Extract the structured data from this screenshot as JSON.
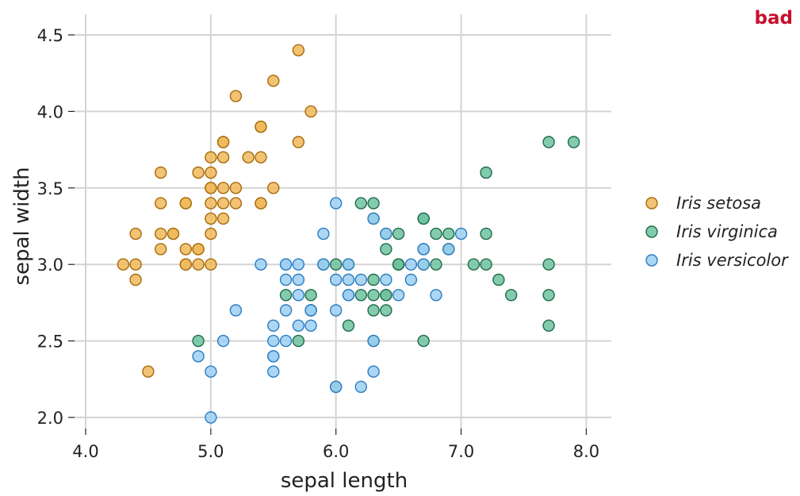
{
  "tag": {
    "text": "bad",
    "color": "#c8102e"
  },
  "chart_data": {
    "type": "scatter",
    "xlabel": "sepal length",
    "ylabel": "sepal width",
    "xlim": [
      4.0,
      8.2
    ],
    "ylim": [
      2.0,
      4.5
    ],
    "xticks": [
      4.0,
      5.0,
      6.0,
      7.0,
      8.0
    ],
    "xtick_labels": [
      "4.0",
      "5.0",
      "6.0",
      "7.0",
      "8.0"
    ],
    "yticks": [
      2.0,
      2.5,
      3.0,
      3.5,
      4.0,
      4.5
    ],
    "ytick_labels": [
      "2.0",
      "2.5",
      "3.0",
      "3.5",
      "4.0",
      "4.5"
    ],
    "grid": true,
    "legend_position": "right",
    "series": [
      {
        "name": "Iris setosa",
        "fill": "#f0b85a",
        "stroke": "#a66a0a",
        "points": [
          [
            5.7,
            4.4
          ],
          [
            5.5,
            4.2
          ],
          [
            5.2,
            4.1
          ],
          [
            5.8,
            4.0
          ],
          [
            5.4,
            3.9
          ],
          [
            5.4,
            3.9
          ],
          [
            5.1,
            3.8
          ],
          [
            5.1,
            3.8
          ],
          [
            5.7,
            3.8
          ],
          [
            5.1,
            3.7
          ],
          [
            5.3,
            3.7
          ],
          [
            5.4,
            3.7
          ],
          [
            5.0,
            3.7
          ],
          [
            4.6,
            3.6
          ],
          [
            4.9,
            3.6
          ],
          [
            5.0,
            3.6
          ],
          [
            5.0,
            3.5
          ],
          [
            5.0,
            3.5
          ],
          [
            5.1,
            3.5
          ],
          [
            5.2,
            3.5
          ],
          [
            5.5,
            3.5
          ],
          [
            4.6,
            3.4
          ],
          [
            5.0,
            3.4
          ],
          [
            5.1,
            3.4
          ],
          [
            5.2,
            3.4
          ],
          [
            5.4,
            3.4
          ],
          [
            5.4,
            3.4
          ],
          [
            4.8,
            3.4
          ],
          [
            4.8,
            3.4
          ],
          [
            5.0,
            3.3
          ],
          [
            5.1,
            3.3
          ],
          [
            4.4,
            3.2
          ],
          [
            4.6,
            3.2
          ],
          [
            4.7,
            3.2
          ],
          [
            4.7,
            3.2
          ],
          [
            5.0,
            3.2
          ],
          [
            4.6,
            3.1
          ],
          [
            4.9,
            3.1
          ],
          [
            4.9,
            3.1
          ],
          [
            4.8,
            3.1
          ],
          [
            4.3,
            3.0
          ],
          [
            4.4,
            3.0
          ],
          [
            4.8,
            3.0
          ],
          [
            4.9,
            3.0
          ],
          [
            5.0,
            3.0
          ],
          [
            4.8,
            3.0
          ],
          [
            4.4,
            2.9
          ],
          [
            4.5,
            2.3
          ]
        ]
      },
      {
        "name": "Iris virginica",
        "fill": "#6ec2a0",
        "stroke": "#1d6b4a",
        "points": [
          [
            7.9,
            3.8
          ],
          [
            7.7,
            3.8
          ],
          [
            7.2,
            3.6
          ],
          [
            6.3,
            3.4
          ],
          [
            6.2,
            3.4
          ],
          [
            6.7,
            3.3
          ],
          [
            6.3,
            3.3
          ],
          [
            6.7,
            3.3
          ],
          [
            6.9,
            3.2
          ],
          [
            6.5,
            3.2
          ],
          [
            7.2,
            3.2
          ],
          [
            6.4,
            3.2
          ],
          [
            6.8,
            3.2
          ],
          [
            6.9,
            3.1
          ],
          [
            6.7,
            3.1
          ],
          [
            6.4,
            3.1
          ],
          [
            6.9,
            3.1
          ],
          [
            7.2,
            3.0
          ],
          [
            7.7,
            3.0
          ],
          [
            7.1,
            3.0
          ],
          [
            6.5,
            3.0
          ],
          [
            6.8,
            3.0
          ],
          [
            6.1,
            3.0
          ],
          [
            5.9,
            3.0
          ],
          [
            6.0,
            3.0
          ],
          [
            6.5,
            3.0
          ],
          [
            6.7,
            3.0
          ],
          [
            6.5,
            3.0
          ],
          [
            6.3,
            2.9
          ],
          [
            7.3,
            2.9
          ],
          [
            6.2,
            2.8
          ],
          [
            6.4,
            2.8
          ],
          [
            6.4,
            2.8
          ],
          [
            7.7,
            2.8
          ],
          [
            6.3,
            2.8
          ],
          [
            7.4,
            2.8
          ],
          [
            5.8,
            2.8
          ],
          [
            5.6,
            2.8
          ],
          [
            6.3,
            2.7
          ],
          [
            6.4,
            2.7
          ],
          [
            5.8,
            2.7
          ],
          [
            5.8,
            2.7
          ],
          [
            7.7,
            2.6
          ],
          [
            6.1,
            2.6
          ],
          [
            5.7,
            2.5
          ],
          [
            6.3,
            2.5
          ],
          [
            4.9,
            2.5
          ],
          [
            6.7,
            2.5
          ],
          [
            6.0,
            2.2
          ]
        ]
      },
      {
        "name": "Iris versicolor",
        "fill": "#9ccff2",
        "stroke": "#2b7cc2",
        "points": [
          [
            6.0,
            3.4
          ],
          [
            6.3,
            3.3
          ],
          [
            5.9,
            3.2
          ],
          [
            7.0,
            3.2
          ],
          [
            6.4,
            3.2
          ],
          [
            6.7,
            3.1
          ],
          [
            6.9,
            3.1
          ],
          [
            6.7,
            3.1
          ],
          [
            5.4,
            3.0
          ],
          [
            5.6,
            3.0
          ],
          [
            5.7,
            3.0
          ],
          [
            5.9,
            3.0
          ],
          [
            6.1,
            3.0
          ],
          [
            6.6,
            3.0
          ],
          [
            6.7,
            3.0
          ],
          [
            5.6,
            2.9
          ],
          [
            5.7,
            2.9
          ],
          [
            6.0,
            2.9
          ],
          [
            6.1,
            2.9
          ],
          [
            6.2,
            2.9
          ],
          [
            6.4,
            2.9
          ],
          [
            6.6,
            2.9
          ],
          [
            6.1,
            2.8
          ],
          [
            6.1,
            2.8
          ],
          [
            6.5,
            2.8
          ],
          [
            6.8,
            2.8
          ],
          [
            5.7,
            2.8
          ],
          [
            5.6,
            3.0
          ],
          [
            5.8,
            2.7
          ],
          [
            5.6,
            2.7
          ],
          [
            5.8,
            2.7
          ],
          [
            6.0,
            2.7
          ],
          [
            5.2,
            2.7
          ],
          [
            5.5,
            2.6
          ],
          [
            5.7,
            2.6
          ],
          [
            5.8,
            2.6
          ],
          [
            5.5,
            2.5
          ],
          [
            5.6,
            2.5
          ],
          [
            6.3,
            2.5
          ],
          [
            4.9,
            2.4
          ],
          [
            5.5,
            2.4
          ],
          [
            5.5,
            2.4
          ],
          [
            6.3,
            2.3
          ],
          [
            5.0,
            2.3
          ],
          [
            5.5,
            2.3
          ],
          [
            6.2,
            2.2
          ],
          [
            6.0,
            2.2
          ],
          [
            5.0,
            2.0
          ],
          [
            5.1,
            2.5
          ]
        ]
      }
    ]
  }
}
